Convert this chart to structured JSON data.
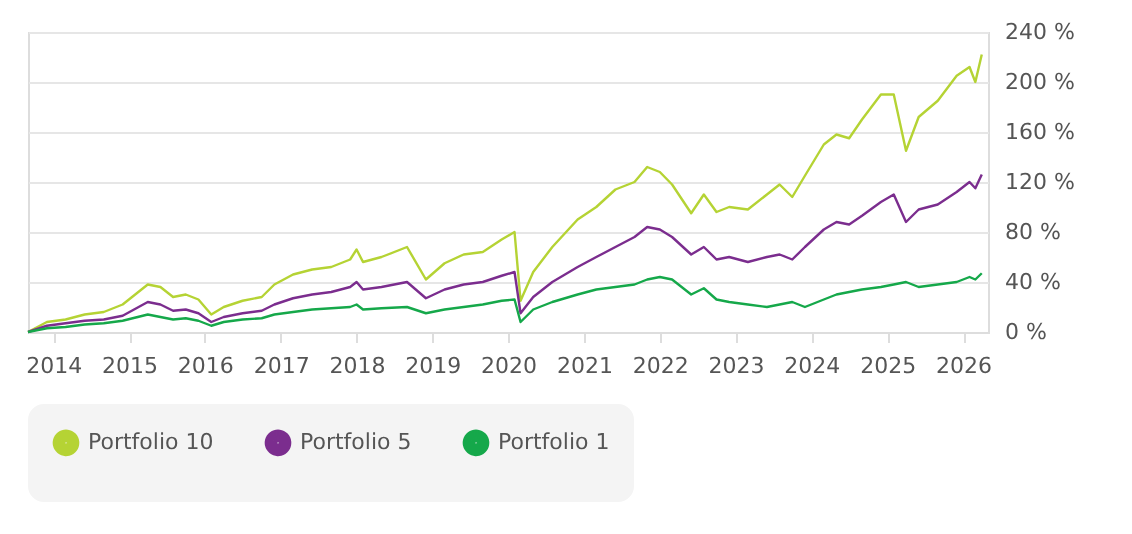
{
  "chart_data": {
    "type": "line",
    "x": [
      "2013-09",
      "2013-12",
      "2014-03",
      "2014-06",
      "2014-09",
      "2014-12",
      "2015-04",
      "2015-06",
      "2015-08",
      "2015-10",
      "2015-12",
      "2016-02",
      "2016-04",
      "2016-07",
      "2016-10",
      "2016-12",
      "2017-03",
      "2017-06",
      "2017-09",
      "2017-12",
      "2018-01",
      "2018-02",
      "2018-05",
      "2018-09",
      "2018-12",
      "2019-03",
      "2019-06",
      "2019-09",
      "2019-12",
      "2020-02",
      "2020-03",
      "2020-05",
      "2020-08",
      "2020-12",
      "2021-03",
      "2021-06",
      "2021-09",
      "2021-11",
      "2022-01",
      "2022-03",
      "2022-06",
      "2022-08",
      "2022-10",
      "2022-12",
      "2023-03",
      "2023-06",
      "2023-08",
      "2023-10",
      "2023-12",
      "2024-03",
      "2024-05",
      "2024-07",
      "2024-09",
      "2024-12",
      "2025-02",
      "2025-04",
      "2025-06",
      "2025-09",
      "2025-12",
      "2026-02",
      "2026-03",
      "2026-04"
    ],
    "series": [
      {
        "name": "Portfolio 10",
        "color": "#b5d334",
        "values": [
          0,
          8,
          10,
          14,
          16,
          22,
          38,
          36,
          28,
          30,
          26,
          14,
          20,
          25,
          28,
          38,
          46,
          50,
          52,
          58,
          66,
          56,
          60,
          68,
          42,
          55,
          62,
          64,
          74,
          80,
          25,
          48,
          68,
          90,
          100,
          114,
          120,
          132,
          128,
          118,
          95,
          110,
          96,
          100,
          98,
          110,
          118,
          108,
          125,
          150,
          158,
          155,
          170,
          190,
          190,
          145,
          172,
          185,
          205,
          212,
          200,
          222
        ]
      },
      {
        "name": "Portfolio 5",
        "color": "#7b2d8e",
        "values": [
          0,
          5,
          7,
          9,
          10,
          13,
          24,
          22,
          17,
          18,
          15,
          8,
          12,
          15,
          17,
          22,
          27,
          30,
          32,
          36,
          40,
          34,
          36,
          40,
          27,
          34,
          38,
          40,
          45,
          48,
          15,
          28,
          40,
          52,
          60,
          68,
          76,
          84,
          82,
          76,
          62,
          68,
          58,
          60,
          56,
          60,
          62,
          58,
          68,
          82,
          88,
          86,
          93,
          104,
          110,
          88,
          98,
          102,
          112,
          120,
          115,
          126
        ]
      },
      {
        "name": "Portfolio 1",
        "color": "#15a84a",
        "values": [
          0,
          3,
          4,
          6,
          7,
          9,
          14,
          12,
          10,
          11,
          9,
          5,
          8,
          10,
          11,
          14,
          16,
          18,
          19,
          20,
          22,
          18,
          19,
          20,
          15,
          18,
          20,
          22,
          25,
          26,
          8,
          18,
          24,
          30,
          34,
          36,
          38,
          42,
          44,
          42,
          30,
          35,
          26,
          24,
          22,
          20,
          22,
          24,
          20,
          26,
          30,
          32,
          34,
          36,
          38,
          40,
          36,
          38,
          40,
          44,
          42,
          47
        ]
      }
    ],
    "xlim": [
      "2013-09",
      "2026-05"
    ],
    "xticks": [
      "2014",
      "2015",
      "2016",
      "2017",
      "2018",
      "2019",
      "2020",
      "2021",
      "2022",
      "2023",
      "2024",
      "2025",
      "2026"
    ],
    "ylim": [
      0,
      240
    ],
    "yticks": [
      {
        "value": 0,
        "label": "0 %"
      },
      {
        "value": 40,
        "label": "40 %"
      },
      {
        "value": 80,
        "label": "80 %"
      },
      {
        "value": 120,
        "label": "120 %"
      },
      {
        "value": 160,
        "label": "160 %"
      },
      {
        "value": 200,
        "label": "200 %"
      },
      {
        "value": 240,
        "label": "240 %"
      }
    ],
    "grid": "y",
    "legend": "bottom",
    "marker": "none",
    "line_style": "solid"
  }
}
